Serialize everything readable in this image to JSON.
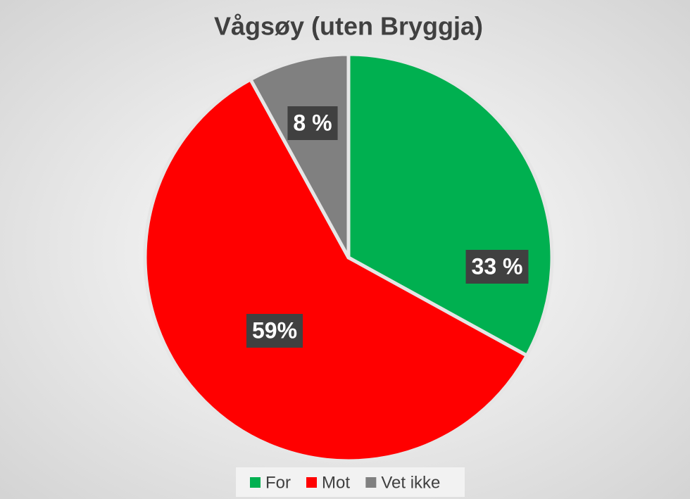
{
  "chart_data": {
    "type": "pie",
    "title": "Vågsøy (uten Bryggja)",
    "categories": [
      "For",
      "Mot",
      "Vet ikke"
    ],
    "values": [
      33,
      59,
      8
    ],
    "value_labels": [
      "33 %",
      "59%",
      "8 %"
    ],
    "colors": [
      "#00b050",
      "#ff0000",
      "#808080"
    ],
    "legend": "bottom"
  }
}
